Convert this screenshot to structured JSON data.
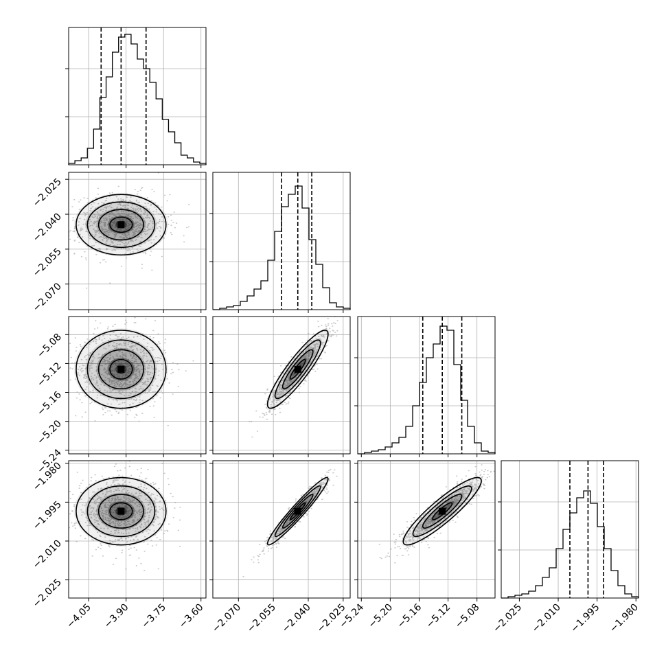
{
  "chart_data": {
    "type": "corner",
    "parameters": [
      {
        "range": [
          -4.13,
          -3.58
        ],
        "ticks": [
          -4.05,
          -3.9,
          -3.75,
          -3.6
        ],
        "tick_labels": [
          "−4.05",
          "−3.90",
          "−3.75",
          "−3.60"
        ],
        "quantiles": [
          -4.0,
          -3.92,
          -3.82
        ],
        "hist": [
          0.01,
          0.03,
          0.05,
          0.12,
          0.26,
          0.49,
          0.64,
          0.82,
          0.93,
          0.95,
          0.88,
          0.77,
          0.7,
          0.6,
          0.48,
          0.33,
          0.24,
          0.16,
          0.07,
          0.05,
          0.02,
          0.01
        ]
      },
      {
        "range": [
          -2.081,
          -2.022
        ],
        "ticks": [
          -2.025,
          -2.04,
          -2.055,
          -2.07
        ],
        "tick_labels": [
          "−2.025",
          "−2.040",
          "−2.055",
          "−2.070"
        ],
        "quantiles": [
          -2.0515,
          -2.0445,
          -2.0385
        ],
        "hist": [
          0.0,
          0.01,
          0.02,
          0.03,
          0.06,
          0.1,
          0.15,
          0.21,
          0.36,
          0.57,
          0.75,
          0.84,
          0.9,
          0.74,
          0.51,
          0.33,
          0.16,
          0.05,
          0.02,
          0.01
        ]
      },
      {
        "range": [
          -5.245,
          -5.055
        ],
        "ticks": [
          -5.08,
          -5.12,
          -5.16,
          -5.2,
          -5.24
        ],
        "tick_labels": [
          "−5.08",
          "−5.12",
          "−5.16",
          "−5.20",
          "−5.24"
        ],
        "quantiles": [
          -5.155,
          -5.128,
          -5.101
        ],
        "hist": [
          0.0,
          0.01,
          0.02,
          0.03,
          0.05,
          0.08,
          0.12,
          0.2,
          0.35,
          0.52,
          0.7,
          0.8,
          0.93,
          0.9,
          0.65,
          0.39,
          0.2,
          0.08,
          0.02,
          0.01
        ]
      },
      {
        "range": [
          -2.032,
          -1.979
        ],
        "ticks": [
          -1.98,
          -1.995,
          -2.01,
          -2.025
        ],
        "tick_labels": [
          "−1.980",
          "−1.995",
          "−2.010",
          "−2.025"
        ],
        "quantiles": [
          -2.0055,
          -1.9985,
          -1.9925
        ],
        "hist": [
          0.0,
          0.01,
          0.02,
          0.03,
          0.05,
          0.09,
          0.15,
          0.22,
          0.36,
          0.5,
          0.62,
          0.73,
          0.78,
          0.69,
          0.52,
          0.36,
          0.2,
          0.09,
          0.03,
          0.01
        ]
      }
    ],
    "correlations": [
      [
        1,
        0,
        0,
        0
      ],
      [
        0,
        1,
        0.9,
        0.96
      ],
      [
        0,
        0.9,
        1,
        0.9
      ],
      [
        0,
        0.96,
        0.9,
        1
      ]
    ],
    "contour_levels": [
      0.5,
      1.0,
      1.5,
      2.0
    ],
    "grid": true,
    "colors": {
      "line": "#000000",
      "grid": "#b0b0b0",
      "scatter": "#9a9a9a",
      "density": "#000000"
    }
  }
}
